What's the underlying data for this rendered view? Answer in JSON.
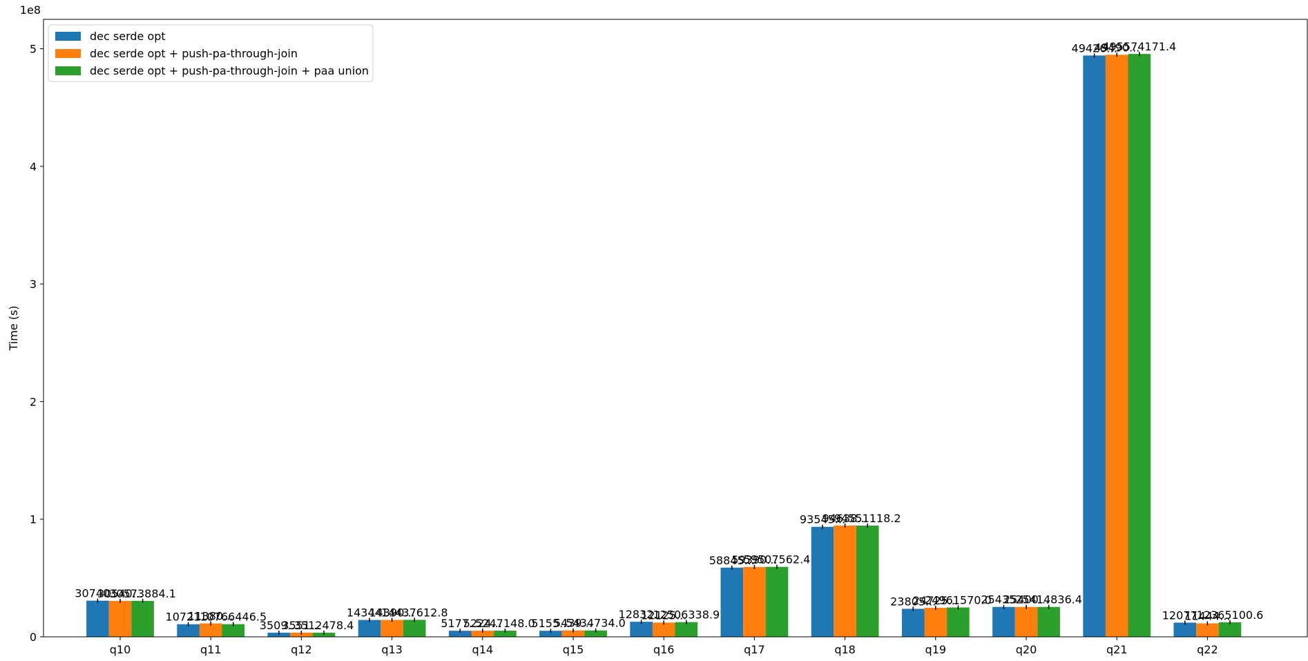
{
  "chart_data": {
    "type": "bar",
    "ylabel": "Time (s)",
    "xlabel": "",
    "title": "",
    "y_offset_text": "1e8",
    "ylim": [
      0,
      525000000
    ],
    "y_ticks": [
      0,
      100000000,
      200000000,
      300000000,
      400000000,
      500000000
    ],
    "y_tick_labels": [
      "0",
      "1",
      "2",
      "3",
      "4",
      "5"
    ],
    "legend_position": "upper-left",
    "grid": false,
    "categories": [
      "q10",
      "q11",
      "q12",
      "q13",
      "q14",
      "q15",
      "q16",
      "q17",
      "q18",
      "q19",
      "q20",
      "q21",
      "q22"
    ],
    "series": [
      {
        "name": "dec serde opt",
        "color": "#1f77b4",
        "values": [
          30740000,
          10721000,
          3509000,
          14344000,
          5177000,
          5155000,
          12832000,
          58845000,
          93545000,
          23805000,
          25435000,
          494265000,
          12077000
        ],
        "labels": [
          "30740...",
          "10721...",
          "3509...",
          "14344...",
          "5177...",
          "5155...",
          "12832...",
          "58845...",
          "93545...",
          "23805...",
          "25435...",
          "49426...",
          "12077..."
        ]
      },
      {
        "name": "dec serde opt + push-pa-through-join",
        "color": "#ff7f0e",
        "values": [
          30540000,
          11380000,
          3551000,
          14390000,
          5224000,
          5439000,
          12125000,
          59390000,
          94638000,
          24725000,
          25400000,
          494900000,
          11444000
        ],
        "labels": [
          "30540...",
          "11380...",
          "3551...",
          "14390...",
          "5224...",
          "5439...",
          "12125...",
          "59390...",
          "94638...",
          "24725...",
          "25400...",
          "49490...",
          "11444..."
        ]
      },
      {
        "name": "dec serde opt + push-pa-through-join + paa union",
        "color": "#2ca02c",
        "values": [
          30573884.1,
          10766446.5,
          3512478.4,
          14437612.8,
          5247148.0,
          5434734.0,
          12506338.9,
          59507562.4,
          94551118.2,
          24961570.0,
          25414836.4,
          495574171.4,
          12365100.6
        ],
        "labels": [
          "30573884.1",
          "10766446.5",
          "3512478.4",
          "14437612.8",
          "5247148.0",
          "5434734.0",
          "12506338.9",
          "59507562.4",
          "94551118.2",
          "24961570.0",
          "25414836.4",
          "495574171.4",
          "12365100.6"
        ]
      }
    ]
  }
}
